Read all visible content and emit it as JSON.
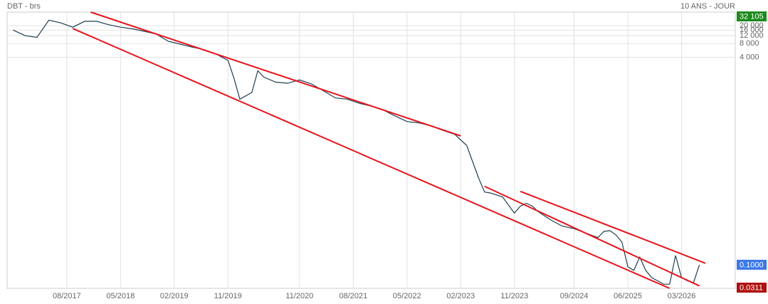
{
  "chart_data": {
    "type": "line",
    "title": "DBT - brs",
    "subtitle": "10 ANS - JOUR",
    "log_scale": true,
    "grid": true,
    "xlim": [
      "10/2016",
      "12/2026"
    ],
    "xticks": [
      "08/2017",
      "05/2018",
      "02/2019",
      "11/2019",
      "11/2020",
      "08/2021",
      "05/2022",
      "02/2023",
      "11/2023",
      "09/2024",
      "06/2025",
      "03/2026"
    ],
    "ylim": [
      0.03,
      40000
    ],
    "yticks": [
      {
        "value": 20000,
        "label": "20 000"
      },
      {
        "value": 16000,
        "label": "16 000"
      },
      {
        "value": 12000,
        "label": "12 000"
      },
      {
        "value": 8000,
        "label": "8 000"
      },
      {
        "value": 4000,
        "label": "4 000"
      }
    ],
    "series": [
      {
        "name": "DBT",
        "color": "#1e3f50",
        "x": [
          "11/2016",
          "01/2017",
          "03/2017",
          "05/2017",
          "07/2017",
          "09/2017",
          "11/2017",
          "01/2018",
          "03/2018",
          "05/2018",
          "07/2018",
          "09/2018",
          "11/2018",
          "01/2019",
          "03/2019",
          "05/2019",
          "07/2019",
          "09/2019",
          "11/2019",
          "12/2019",
          "01/2020",
          "03/2020",
          "04/2020",
          "05/2020",
          "07/2020",
          "09/2020",
          "11/2020",
          "01/2021",
          "03/2021",
          "05/2021",
          "07/2021",
          "09/2021",
          "11/2021",
          "01/2022",
          "03/2022",
          "05/2022",
          "07/2022",
          "09/2022",
          "11/2022",
          "01/2023",
          "03/2023",
          "05/2023",
          "06/2023",
          "07/2023",
          "09/2023",
          "11/2023",
          "12/2023",
          "01/2024",
          "02/2024",
          "03/2024",
          "05/2024",
          "07/2024",
          "09/2024",
          "11/2024",
          "01/2025",
          "02/2025",
          "03/2025",
          "04/2025",
          "05/2025",
          "06/2025",
          "07/2025",
          "08/2025",
          "09/2025",
          "10/2025",
          "11/2025",
          "12/2025",
          "01/2026",
          "02/2026",
          "03/2026",
          "04/2026",
          "05/2026",
          "06/2026"
        ],
        "values": [
          16000,
          12000,
          11000,
          26500,
          23000,
          18500,
          25000,
          25000,
          21000,
          18500,
          17000,
          15000,
          13000,
          9000,
          7800,
          6700,
          5900,
          4700,
          3400,
          1380,
          470,
          660,
          2000,
          1450,
          1120,
          1060,
          1250,
          1020,
          720,
          500,
          470,
          380,
          330,
          270,
          200,
          150,
          140,
          120,
          96,
          78,
          44,
          8.4,
          4.1,
          3.9,
          3.2,
          1.4,
          2.0,
          2.3,
          2.0,
          1.5,
          1.0,
          0.72,
          0.63,
          0.5,
          0.4,
          0.55,
          0.57,
          0.46,
          0.32,
          0.09,
          0.075,
          0.148,
          0.075,
          0.052,
          0.044,
          0.037,
          0.037,
          0.16,
          0.052,
          0.044,
          0.04,
          0.1
        ]
      }
    ],
    "trendlines": [
      {
        "color": "#e8141c",
        "x": [
          "12/2017",
          "02/2023"
        ],
        "y": [
          40000,
          72
        ]
      },
      {
        "color": "#e8141c",
        "x": [
          "09/2017",
          "01/2026"
        ],
        "y": [
          17300,
          0.03
        ]
      },
      {
        "color": "#e8141c",
        "x": [
          "06/2023",
          "06/2026"
        ],
        "y": [
          5.47,
          0.034
        ]
      },
      {
        "color": "#e8141c",
        "x": [
          "12/2023",
          "07/2026"
        ],
        "y": [
          4.24,
          0.108
        ]
      }
    ],
    "markers": [
      {
        "value": 32105,
        "label": "32 105",
        "color": "#1c8a1c"
      },
      {
        "value": 0.1,
        "label": "0.1000",
        "color": "#3b78e7"
      },
      {
        "value": 0.0311,
        "label": "0.0311",
        "color": "#b0100e"
      }
    ]
  }
}
